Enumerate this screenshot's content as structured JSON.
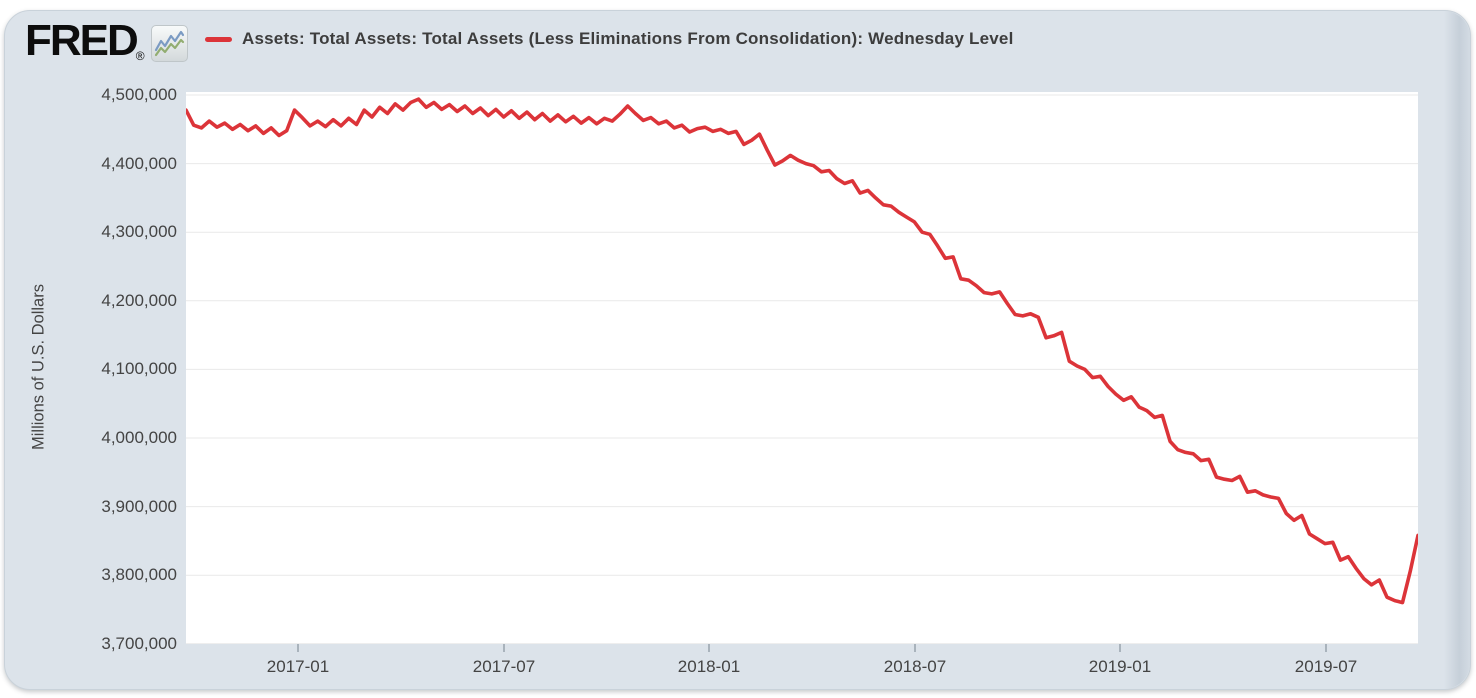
{
  "logo": {
    "text": "FRED",
    "registered": "®"
  },
  "legend": {
    "series_label": "Assets: Total Assets: Total Assets (Less Eliminations From Consolidation): Wednesday Level"
  },
  "y_axis": {
    "title": "Millions of U.S. Dollars",
    "tick_labels": [
      "4,500,000",
      "4,400,000",
      "4,300,000",
      "4,200,000",
      "4,100,000",
      "4,000,000",
      "3,900,000",
      "3,800,000",
      "3,700,000"
    ]
  },
  "x_axis": {
    "tick_labels": [
      "2017-01",
      "2017-07",
      "2018-01",
      "2018-07",
      "2019-01",
      "2019-07"
    ]
  },
  "colors": {
    "line": "#dc3439",
    "panel_bg": "#dce3ea",
    "plot_bg": "#ffffff",
    "grid": "#e9e9e9",
    "axis_text": "#444444",
    "legend_text": "#3d3d3d",
    "tick_mark": "#a9b3bc",
    "logo_blue": "#7b9bc3",
    "logo_green": "#92ad71"
  },
  "chart_data": {
    "type": "line",
    "series": [
      {
        "name": "Assets: Total Assets: Total Assets (Less Eliminations From Consolidation): Wednesday Level",
        "color": "#dc3439",
        "values": [
          4478000,
          4456000,
          4452000,
          4462000,
          4453000,
          4459000,
          4450000,
          4457000,
          4448000,
          4455000,
          4444000,
          4452000,
          4441000,
          4448000,
          4478000,
          4467000,
          4455000,
          4462000,
          4454000,
          4464000,
          4455000,
          4466000,
          4457000,
          4478000,
          4468000,
          4482000,
          4473000,
          4487000,
          4478000,
          4489000,
          4494000,
          4482000,
          4489000,
          4479000,
          4486000,
          4476000,
          4484000,
          4473000,
          4481000,
          4470000,
          4479000,
          4468000,
          4477000,
          4466000,
          4475000,
          4464000,
          4473000,
          4462000,
          4471000,
          4461000,
          4469000,
          4459000,
          4467000,
          4458000,
          4466000,
          4462000,
          4472000,
          4484000,
          4473000,
          4463000,
          4467000,
          4458000,
          4462000,
          4452000,
          4456000,
          4446000,
          4451000,
          4453000,
          4447000,
          4450000,
          4444000,
          4447000,
          4428000,
          4434000,
          4443000,
          4420000,
          4398000,
          4404000,
          4412000,
          4405000,
          4400000,
          4397000,
          4388000,
          4390000,
          4378000,
          4371000,
          4375000,
          4357000,
          4361000,
          4350000,
          4340000,
          4338000,
          4329000,
          4322000,
          4315000,
          4300000,
          4297000,
          4280000,
          4262000,
          4264000,
          4232000,
          4230000,
          4222000,
          4212000,
          4210000,
          4213000,
          4196000,
          4180000,
          4178000,
          4181000,
          4176000,
          4146000,
          4149000,
          4154000,
          4112000,
          4105000,
          4100000,
          4088000,
          4090000,
          4075000,
          4064000,
          4055000,
          4060000,
          4045000,
          4040000,
          4030000,
          4033000,
          3995000,
          3983000,
          3979000,
          3977000,
          3967000,
          3969000,
          3943000,
          3940000,
          3938000,
          3944000,
          3921000,
          3923000,
          3917000,
          3914000,
          3912000,
          3890000,
          3880000,
          3887000,
          3860000,
          3853000,
          3846000,
          3848000,
          3822000,
          3827000,
          3810000,
          3795000,
          3786000,
          3793000,
          3768000,
          3763000,
          3760000,
          3806000,
          3858000
        ]
      }
    ],
    "x_start": "2016-09-28",
    "frequency": "weekly (Wednesday)",
    "x_tick_labels": [
      "2017-01",
      "2017-07",
      "2018-01",
      "2018-07",
      "2019-01",
      "2019-07"
    ],
    "ylabel": "Millions of U.S. Dollars",
    "ylim": [
      3700000,
      4500000
    ],
    "grid": true,
    "legend_position": "top"
  }
}
